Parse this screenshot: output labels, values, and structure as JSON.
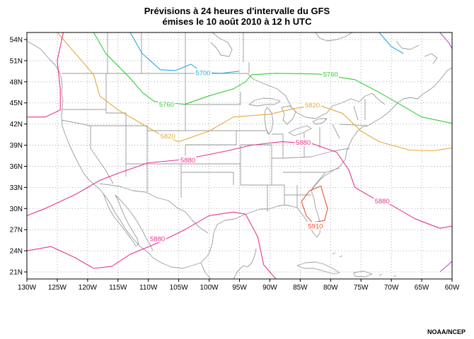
{
  "title": {
    "line1": "Prévisions à 24 heures d'intervalle du GFS",
    "line2": "émises le 10 août 2010 à 12 h UTC"
  },
  "credit": "NOAA/NCEP",
  "map": {
    "lon_range": [
      -130,
      -60
    ],
    "lat_range": [
      20,
      55
    ],
    "x_ticks": [
      {
        "lon": -130,
        "label": "130W"
      },
      {
        "lon": -125,
        "label": "125W"
      },
      {
        "lon": -120,
        "label": "120W"
      },
      {
        "lon": -115,
        "label": "115W"
      },
      {
        "lon": -110,
        "label": "110W"
      },
      {
        "lon": -105,
        "label": "105W"
      },
      {
        "lon": -100,
        "label": "100W"
      },
      {
        "lon": -95,
        "label": "95W"
      },
      {
        "lon": -90,
        "label": "90W"
      },
      {
        "lon": -85,
        "label": "85W"
      },
      {
        "lon": -80,
        "label": "80W"
      },
      {
        "lon": -75,
        "label": "75W"
      },
      {
        "lon": -70,
        "label": "70W"
      },
      {
        "lon": -65,
        "label": "65W"
      },
      {
        "lon": -60,
        "label": "60W"
      }
    ],
    "y_ticks": [
      {
        "lat": 21,
        "label": "21N"
      },
      {
        "lat": 24,
        "label": "24N"
      },
      {
        "lat": 27,
        "label": "27N"
      },
      {
        "lat": 30,
        "label": "30N"
      },
      {
        "lat": 33,
        "label": "33N"
      },
      {
        "lat": 36,
        "label": "36N"
      },
      {
        "lat": 39,
        "label": "39N"
      },
      {
        "lat": 42,
        "label": "42N"
      },
      {
        "lat": 45,
        "label": "45N"
      },
      {
        "lat": 48,
        "label": "48N"
      },
      {
        "lat": 51,
        "label": "51N"
      },
      {
        "lat": 54,
        "label": "54N"
      }
    ],
    "grid": "dotted",
    "colors": {
      "coast": "#9a9a9a",
      "grid": "#9a9a9a",
      "c5700": "#29a8e0",
      "c5760": "#33cc33",
      "c5820": "#e8a83c",
      "c5880": "#e8338c",
      "c5910": "#e85030",
      "extra": "#c050c0"
    },
    "contours": [
      {
        "value": 5700,
        "color": "#29a8e0",
        "labels": [
          {
            "text": "5700",
            "lon": -101,
            "lat": 49.3
          }
        ],
        "lines": [
          [
            [
              -113,
              55
            ],
            [
              -111,
              52
            ],
            [
              -108,
              49.7
            ],
            [
              -105.5,
              49.6
            ],
            [
              -103,
              50.5
            ],
            [
              -101,
              49.3
            ],
            [
              -98,
              49.2
            ],
            [
              -95,
              49.5
            ]
          ],
          [
            [
              -72,
              55
            ],
            [
              -70,
              53
            ],
            [
              -68,
              52
            ]
          ]
        ]
      },
      {
        "value": 5760,
        "color": "#33cc33",
        "labels": [
          {
            "text": "5760",
            "lon": -107,
            "lat": 44.8
          },
          {
            "text": "5760",
            "lon": -80,
            "lat": 49.1
          }
        ],
        "lines": [
          [
            [
              -119,
              55
            ],
            [
              -117,
              52
            ],
            [
              -113,
              48.5
            ],
            [
              -111,
              46.5
            ],
            [
              -109,
              45.2
            ],
            [
              -104,
              44.8
            ],
            [
              -100,
              46
            ],
            [
              -96,
              47
            ],
            [
              -94,
              48
            ],
            [
              -93,
              49
            ],
            [
              -89,
              49.2
            ],
            [
              -82,
              49.1
            ],
            [
              -76,
              48.3
            ],
            [
              -72,
              46.5
            ],
            [
              -68,
              44.5
            ],
            [
              -65,
              43
            ],
            [
              -60,
              42.1
            ]
          ]
        ]
      },
      {
        "value": 5820,
        "color": "#e8a83c",
        "labels": [
          {
            "text": "5820",
            "lon": -106.8,
            "lat": 40.3
          },
          {
            "text": "5820",
            "lon": -83,
            "lat": 44.7
          }
        ],
        "lines": [
          [
            [
              -125,
              55
            ],
            [
              -122,
              52
            ],
            [
              -119,
              49
            ],
            [
              -118,
              46
            ],
            [
              -115,
              44
            ],
            [
              -111,
              42
            ],
            [
              -108,
              40.5
            ],
            [
              -105,
              39.5
            ],
            [
              -100,
              41
            ],
            [
              -96,
              43
            ],
            [
              -90,
              43.4
            ],
            [
              -86,
              44.2
            ],
            [
              -82,
              44.7
            ],
            [
              -78,
              43.5
            ],
            [
              -75,
              41
            ],
            [
              -72,
              39.5
            ],
            [
              -67,
              38.3
            ],
            [
              -63,
              38.2
            ],
            [
              -60,
              38.6
            ]
          ]
        ]
      },
      {
        "value": 5880,
        "color": "#e8338c",
        "labels": [
          {
            "text": "5880",
            "lon": -103.5,
            "lat": 36.9
          },
          {
            "text": "5880",
            "lon": -84.5,
            "lat": 39.4
          },
          {
            "text": "5880",
            "lon": -108.5,
            "lat": 25.7
          },
          {
            "text": "5880",
            "lon": -71.5,
            "lat": 31.1
          }
        ],
        "lines": [
          [
            [
              -130,
              29
            ],
            [
              -127,
              30
            ],
            [
              -122,
              32
            ],
            [
              -118,
              34
            ],
            [
              -115,
              35
            ],
            [
              -110,
              36.5
            ],
            [
              -105,
              36.9
            ],
            [
              -101,
              37.5
            ],
            [
              -97,
              38.2
            ],
            [
              -93,
              39
            ],
            [
              -88,
              39.5
            ],
            [
              -83,
              39.2
            ],
            [
              -79,
              38
            ],
            [
              -77,
              35.5
            ],
            [
              -76,
              33
            ],
            [
              -73,
              31.5
            ],
            [
              -70,
              30.5
            ],
            [
              -66,
              28.5
            ],
            [
              -62,
              27.2
            ],
            [
              -60,
              27.5
            ]
          ],
          [
            [
              -124,
              55
            ],
            [
              -125,
              51
            ],
            [
              -124.5,
              47
            ],
            [
              -124.5,
              44
            ],
            [
              -127,
              43
            ],
            [
              -130,
              43
            ]
          ],
          [
            [
              -130,
              24
            ],
            [
              -126,
              24.6
            ],
            [
              -122,
              23
            ],
            [
              -119,
              21.5
            ],
            [
              -116,
              21.8
            ],
            [
              -113,
              23.5
            ],
            [
              -108,
              25.3
            ],
            [
              -104,
              27
            ],
            [
              -100,
              29
            ],
            [
              -96,
              29.5
            ],
            [
              -94,
              29.2
            ],
            [
              -92,
              26
            ],
            [
              -91,
              22
            ],
            [
              -89,
              20
            ]
          ]
        ]
      },
      {
        "value": 5910,
        "color": "#e85030",
        "labels": [
          {
            "text": "5910",
            "lon": -82.5,
            "lat": 27.5
          }
        ],
        "lines": [
          [
            [
              -81.6,
              33.2
            ],
            [
              -83.5,
              32.5
            ],
            [
              -84.8,
              31
            ],
            [
              -84,
              29
            ],
            [
              -83,
              28
            ],
            [
              -81,
              28.3
            ],
            [
              -80.5,
              30
            ],
            [
              -81.6,
              33.2
            ]
          ]
        ]
      },
      {
        "value": null,
        "color": "#c050c0",
        "labels": [],
        "lines": [
          [
            [
              -62,
              55
            ],
            [
              -60.5,
              53.5
            ],
            [
              -60,
              52.7
            ]
          ],
          [
            [
              -62,
              21
            ],
            [
              -60,
              22.5
            ]
          ]
        ]
      }
    ]
  }
}
